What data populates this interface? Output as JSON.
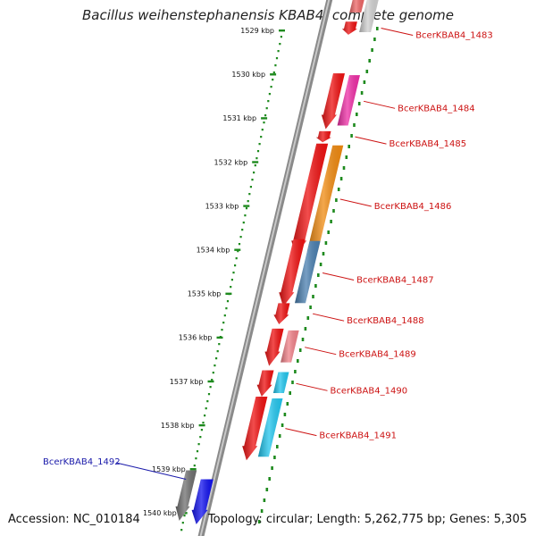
{
  "title": "Bacillus weihenstephanensis KBAB4, complete genome",
  "footer": {
    "accession": "Accession: NC_010184",
    "topology": "Topology: circular; Length: 5,262,775 bp; Genes: 5,305"
  },
  "colors": {
    "backbone": "#8a8a8a",
    "ruler": "#1e8a1e",
    "label_forward": "#cc1111",
    "label_reverse": "#1a1aaa"
  },
  "ruler_ticks": [
    {
      "label": "1529 kbp",
      "kbp": 1529
    },
    {
      "label": "1530 kbp",
      "kbp": 1530
    },
    {
      "label": "1531 kbp",
      "kbp": 1531
    },
    {
      "label": "1532 kbp",
      "kbp": 1532
    },
    {
      "label": "1533 kbp",
      "kbp": 1533
    },
    {
      "label": "1534 kbp",
      "kbp": 1534
    },
    {
      "label": "1535 kbp",
      "kbp": 1535
    },
    {
      "label": "1536 kbp",
      "kbp": 1536
    },
    {
      "label": "1537 kbp",
      "kbp": 1537
    },
    {
      "label": "1538 kbp",
      "kbp": 1538
    },
    {
      "label": "1539 kbp",
      "kbp": 1539
    },
    {
      "label": "1540 kbp",
      "kbp": 1540
    }
  ],
  "genes": [
    {
      "label": "BcerKBAB4_1483",
      "strand": "forward",
      "start_kbp": 1528.8,
      "end_kbp": 1529.1,
      "cds_color": "#f3ef9a",
      "lane": "outer"
    },
    {
      "label": "BcerKBAB4_1484",
      "strand": "forward",
      "start_kbp": 1529.98,
      "end_kbp": 1531.25,
      "cds_color": "#ee2ea6",
      "lane": "outer"
    },
    {
      "label": "BcerKBAB4_1485",
      "strand": "forward",
      "start_kbp": 1531.3,
      "end_kbp": 1531.55,
      "cds_color": "",
      "lane": "outer"
    },
    {
      "label": "BcerKBAB4_1486",
      "strand": "forward",
      "start_kbp": 1531.58,
      "end_kbp": 1534.12,
      "cds_color": "#f08a10",
      "lane": "outer"
    },
    {
      "label": "BcerKBAB4_1487",
      "strand": "forward",
      "start_kbp": 1533.76,
      "end_kbp": 1535.3,
      "cds_color": "#4a7fb0",
      "lane": "outer"
    },
    {
      "label": "BcerKBAB4_1488",
      "strand": "forward",
      "start_kbp": 1535.22,
      "end_kbp": 1535.7,
      "cds_color": "",
      "lane": "outer"
    },
    {
      "label": "BcerKBAB4_1489",
      "strand": "forward",
      "start_kbp": 1535.8,
      "end_kbp": 1536.65,
      "cds_color": "#f08088",
      "lane": "outer"
    },
    {
      "label": "BcerKBAB4_1490",
      "strand": "forward",
      "start_kbp": 1536.75,
      "end_kbp": 1537.35,
      "cds_color": "#22c6ee",
      "lane": "outer"
    },
    {
      "label": "BcerKBAB4_1491",
      "strand": "forward",
      "start_kbp": 1537.35,
      "end_kbp": 1538.8,
      "cds_color": "#22c6ee",
      "lane": "outer"
    },
    {
      "label": "BcerKBAB4_1492",
      "strand": "reverse",
      "start_kbp": 1539.03,
      "end_kbp": 1540.18,
      "cds_color": "#1111ee",
      "lane": "inner"
    }
  ]
}
